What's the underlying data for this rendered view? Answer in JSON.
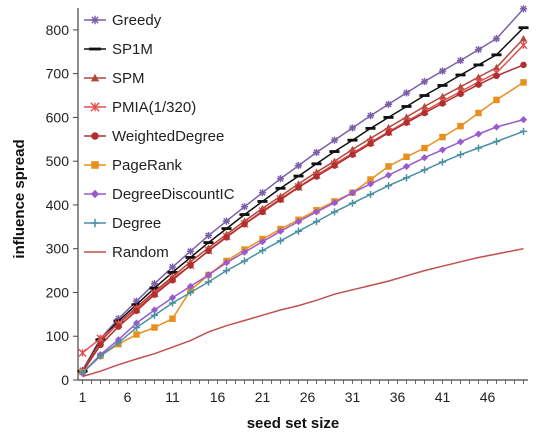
{
  "chart_data": {
    "type": "line",
    "xlabel": "seed set size",
    "ylabel": "influence spread",
    "xlim": [
      1,
      50
    ],
    "ylim": [
      0,
      850
    ],
    "xticks": [
      1,
      6,
      11,
      16,
      21,
      26,
      31,
      36,
      41,
      46
    ],
    "yticks": [
      0,
      100,
      200,
      300,
      400,
      500,
      600,
      700,
      800
    ],
    "grid": false,
    "legend_placement": "top-left",
    "series": [
      {
        "name": "Greedy",
        "color": "#7b5fa8",
        "marker": "star",
        "x": [
          1,
          3,
          5,
          7,
          9,
          11,
          13,
          15,
          17,
          19,
          21,
          23,
          25,
          27,
          29,
          31,
          33,
          35,
          37,
          39,
          41,
          43,
          45,
          47,
          50
        ],
        "y": [
          22,
          95,
          140,
          180,
          220,
          258,
          294,
          330,
          363,
          396,
          428,
          460,
          490,
          520,
          548,
          576,
          604,
          630,
          656,
          682,
          706,
          730,
          755,
          780,
          848
        ]
      },
      {
        "name": "SP1M",
        "color": "#111111",
        "marker": "dash",
        "x": [
          1,
          3,
          5,
          7,
          9,
          11,
          13,
          15,
          17,
          19,
          21,
          23,
          25,
          27,
          29,
          31,
          33,
          35,
          37,
          39,
          41,
          43,
          45,
          47,
          50
        ],
        "y": [
          20,
          92,
          135,
          172,
          210,
          246,
          280,
          314,
          346,
          378,
          408,
          438,
          466,
          494,
          522,
          548,
          575,
          600,
          625,
          650,
          673,
          697,
          720,
          743,
          805
        ]
      },
      {
        "name": "SPM",
        "color": "#b0473a",
        "marker": "triangle",
        "x": [
          1,
          3,
          5,
          7,
          9,
          11,
          13,
          15,
          17,
          19,
          21,
          23,
          25,
          27,
          29,
          31,
          33,
          35,
          37,
          39,
          41,
          43,
          45,
          47,
          50
        ],
        "y": [
          20,
          88,
          130,
          166,
          202,
          236,
          270,
          302,
          333,
          363,
          392,
          420,
          448,
          475,
          500,
          527,
          552,
          577,
          601,
          625,
          648,
          670,
          692,
          714,
          780
        ]
      },
      {
        "name": "PMIA(1/320)",
        "color": "#e05050",
        "marker": "asterisk",
        "x": [
          1,
          3,
          5,
          7,
          9,
          11,
          13,
          15,
          17,
          19,
          21,
          23,
          25,
          27,
          29,
          31,
          33,
          35,
          37,
          39,
          41,
          43,
          45,
          47,
          50
        ],
        "y": [
          62,
          95,
          128,
          162,
          198,
          232,
          262,
          296,
          328,
          357,
          386,
          414,
          441,
          468,
          493,
          518,
          543,
          567,
          591,
          614,
          637,
          659,
          681,
          702,
          765
        ]
      },
      {
        "name": "WeightedDegree",
        "color": "#b03030",
        "marker": "circle",
        "x": [
          1,
          3,
          5,
          7,
          9,
          11,
          13,
          15,
          17,
          19,
          21,
          23,
          25,
          27,
          29,
          31,
          33,
          35,
          37,
          39,
          41,
          43,
          45,
          47,
          50
        ],
        "y": [
          18,
          80,
          122,
          158,
          195,
          228,
          262,
          295,
          326,
          356,
          384,
          412,
          440,
          465,
          490,
          515,
          540,
          565,
          588,
          610,
          632,
          654,
          675,
          695,
          720
        ]
      },
      {
        "name": "PageRank",
        "color": "#e8901e",
        "marker": "square",
        "x": [
          1,
          3,
          5,
          7,
          9,
          11,
          13,
          15,
          17,
          19,
          21,
          23,
          25,
          27,
          29,
          31,
          33,
          35,
          37,
          39,
          41,
          43,
          45,
          47,
          50
        ],
        "y": [
          18,
          55,
          82,
          104,
          120,
          140,
          205,
          240,
          272,
          298,
          322,
          345,
          366,
          388,
          408,
          428,
          458,
          488,
          510,
          530,
          555,
          580,
          610,
          640,
          680
        ]
      },
      {
        "name": "DegreeDiscountIC",
        "color": "#9b59d0",
        "marker": "diamond",
        "x": [
          1,
          3,
          5,
          7,
          9,
          11,
          13,
          15,
          17,
          19,
          21,
          23,
          25,
          27,
          29,
          31,
          33,
          35,
          37,
          39,
          41,
          43,
          45,
          47,
          50
        ],
        "y": [
          16,
          58,
          92,
          130,
          160,
          188,
          214,
          240,
          268,
          292,
          316,
          340,
          362,
          384,
          405,
          428,
          448,
          468,
          488,
          508,
          526,
          544,
          562,
          578,
          595
        ]
      },
      {
        "name": "Degree",
        "color": "#4a90a4",
        "marker": "plus",
        "x": [
          1,
          3,
          5,
          7,
          9,
          11,
          13,
          15,
          17,
          19,
          21,
          23,
          25,
          27,
          29,
          31,
          33,
          35,
          37,
          39,
          41,
          43,
          45,
          47,
          50
        ],
        "y": [
          16,
          55,
          85,
          120,
          148,
          176,
          200,
          224,
          250,
          272,
          296,
          318,
          340,
          362,
          384,
          404,
          424,
          444,
          462,
          480,
          498,
          515,
          530,
          545,
          568
        ]
      },
      {
        "name": "Random",
        "color": "#c0504d",
        "marker": "none",
        "x": [
          1,
          3,
          5,
          7,
          9,
          11,
          13,
          15,
          17,
          19,
          21,
          23,
          25,
          27,
          29,
          31,
          33,
          35,
          37,
          39,
          41,
          43,
          45,
          47,
          50
        ],
        "y": [
          8,
          20,
          35,
          48,
          60,
          75,
          90,
          110,
          124,
          136,
          148,
          160,
          170,
          182,
          196,
          206,
          216,
          226,
          238,
          250,
          260,
          270,
          280,
          288,
          300
        ]
      }
    ]
  }
}
